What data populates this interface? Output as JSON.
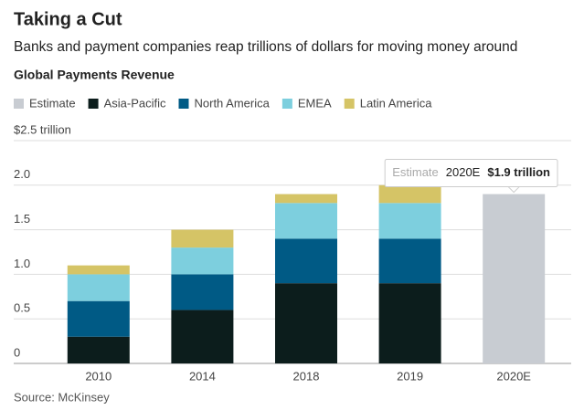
{
  "chart_data": {
    "type": "stacked_bar",
    "title": "Taking a Cut",
    "subtitle": "Banks and payment companies reap trillions of dollars for moving money around",
    "chart_title": "Global Payments Revenue",
    "source": "Source: McKinsey",
    "categories": [
      "2010",
      "2014",
      "2018",
      "2019",
      "2020E"
    ],
    "series": [
      {
        "name": "Estimate",
        "color": "#c8ccd2",
        "values": [
          null,
          null,
          null,
          null,
          1.9
        ],
        "value_labels": [
          null,
          null,
          null,
          null,
          "$1.9 trillion"
        ]
      },
      {
        "name": "Asia-Pacific",
        "color": "#0c1d1c",
        "values": [
          0.3,
          0.6,
          0.9,
          0.9,
          null
        ]
      },
      {
        "name": "North America",
        "color": "#005a85",
        "values": [
          0.4,
          0.4,
          0.5,
          0.5,
          null
        ]
      },
      {
        "name": "EMEA",
        "color": "#7dcfde",
        "values": [
          0.3,
          0.3,
          0.4,
          0.4,
          null
        ]
      },
      {
        "name": "Latin America",
        "color": "#d5c466",
        "values": [
          0.1,
          0.2,
          0.1,
          0.2,
          null
        ]
      }
    ],
    "ylim": [
      0,
      2.5
    ],
    "yticks": [
      {
        "value": 0,
        "label": "0"
      },
      0.5,
      {
        "value": 1,
        "label": "1.0"
      },
      1.5,
      {
        "value": 2,
        "label": "2.0"
      },
      {
        "value": 2.5,
        "label": "$2.5 trillion"
      }
    ],
    "grid": true,
    "legend": "top-left"
  }
}
